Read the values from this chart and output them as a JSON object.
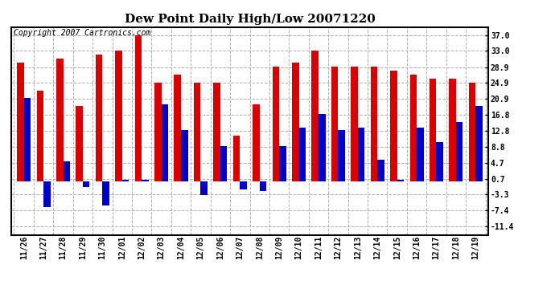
{
  "title": "Dew Point Daily High/Low 20071220",
  "copyright": "Copyright 2007 Cartronics.com",
  "dates": [
    "11/26",
    "11/27",
    "11/28",
    "11/29",
    "11/30",
    "12/01",
    "12/02",
    "12/03",
    "12/04",
    "12/05",
    "12/06",
    "12/07",
    "12/08",
    "12/09",
    "12/10",
    "12/11",
    "12/12",
    "12/13",
    "12/14",
    "12/15",
    "12/16",
    "12/17",
    "12/18",
    "12/19"
  ],
  "highs": [
    30.0,
    23.0,
    31.0,
    19.0,
    32.0,
    33.0,
    37.0,
    25.0,
    27.0,
    25.0,
    25.0,
    11.5,
    19.5,
    29.0,
    30.0,
    33.0,
    29.0,
    29.0,
    29.0,
    28.0,
    27.0,
    26.0,
    26.0,
    25.0
  ],
  "lows": [
    21.0,
    -6.5,
    5.0,
    -1.5,
    -6.0,
    0.5,
    0.5,
    19.5,
    13.0,
    -3.5,
    9.0,
    -2.0,
    -2.5,
    9.0,
    13.5,
    17.0,
    13.0,
    13.5,
    5.5,
    0.5,
    13.5,
    10.0,
    15.0,
    19.0
  ],
  "bar_color_high": "#dd0000",
  "bar_color_low": "#0000cc",
  "background_color": "#ffffff",
  "grid_color": "#b0b0b0",
  "yticks": [
    37.0,
    33.0,
    28.9,
    24.9,
    20.9,
    16.8,
    12.8,
    8.8,
    4.7,
    0.7,
    -3.3,
    -7.4,
    -11.4
  ],
  "ylim": [
    -13.5,
    39.0
  ],
  "title_fontsize": 11,
  "copyright_fontsize": 7,
  "tick_fontsize": 7,
  "bar_width": 0.35,
  "figwidth": 6.9,
  "figheight": 3.75,
  "dpi": 100
}
